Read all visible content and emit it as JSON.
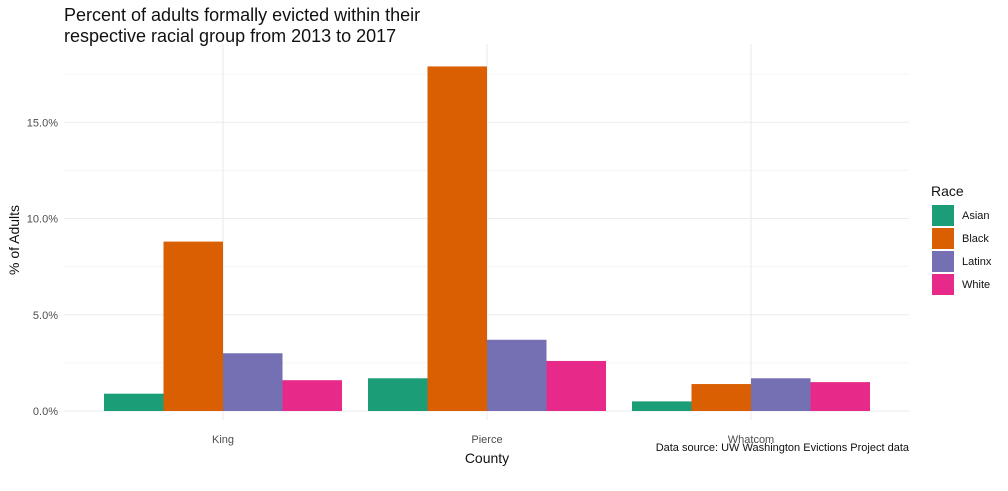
{
  "chart_data": {
    "type": "bar",
    "title_lines": [
      "Percent of adults formally evicted within their",
      "respective racial group from 2013 to 2017"
    ],
    "xlabel": "County",
    "ylabel": "% of Adults",
    "categories": [
      "King",
      "Pierce",
      "Whatcom"
    ],
    "series": [
      {
        "name": "Asian",
        "color": "#1b9e77",
        "values": [
          0.9,
          1.7,
          0.5
        ]
      },
      {
        "name": "Black",
        "color": "#d95f02",
        "values": [
          8.8,
          17.9,
          1.4
        ]
      },
      {
        "name": "Latinx",
        "color": "#7570b3",
        "values": [
          3.0,
          3.7,
          1.7
        ]
      },
      {
        "name": "White",
        "color": "#e7298a",
        "values": [
          1.6,
          2.6,
          1.5
        ]
      }
    ],
    "yticks": [
      0,
      5,
      10,
      15
    ],
    "ytick_labels": [
      "0.0%",
      "5.0%",
      "10.0%",
      "15.0%"
    ],
    "ylim": [
      0,
      18.5
    ],
    "grid": true,
    "legend_title": "Race",
    "legend_position": "right",
    "caption": "Data source: UW Washington Evictions Project data"
  }
}
